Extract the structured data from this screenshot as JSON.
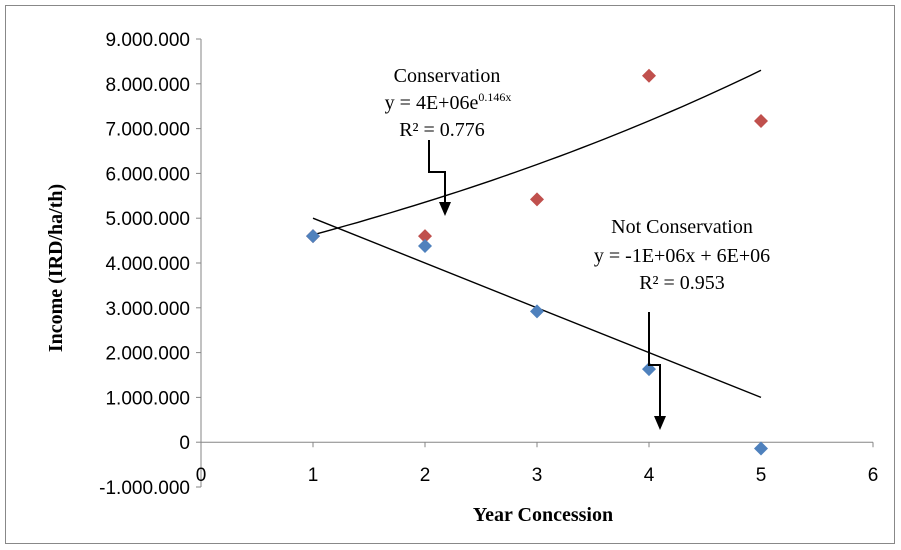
{
  "chart_data": {
    "type": "scatter",
    "title": "",
    "xlabel": "Year  Concession",
    "ylabel": "Income  (IRD/ha/th)",
    "xlim": [
      0,
      6
    ],
    "ylim": [
      -1000000,
      9000000
    ],
    "x_ticks": [
      "0",
      "1",
      "2",
      "3",
      "4",
      "5",
      "6"
    ],
    "y_ticks": [
      "-1.000.000",
      "0",
      "1.000.000",
      "2.000.000",
      "3.000.000",
      "4.000.000",
      "5.000.000",
      "6.000.000",
      "7.000.000",
      "8.000.000",
      "9.000.000"
    ],
    "grid": false,
    "series": [
      {
        "name": "Conservation",
        "color": "#c0504d",
        "marker": "diamond",
        "x": [
          1,
          2,
          3,
          4,
          5
        ],
        "y": [
          4600000,
          4600000,
          5420000,
          8180000,
          7170000
        ],
        "trendline": {
          "type": "exponential",
          "a": 4000000,
          "b": 0.146
        }
      },
      {
        "name": "Not Conservation",
        "color": "#4f81bd",
        "marker": "diamond",
        "x": [
          1,
          2,
          3,
          4,
          5
        ],
        "y": [
          4600000,
          4380000,
          2920000,
          1630000,
          -140000
        ],
        "trendline": {
          "type": "linear",
          "slope": -1000000,
          "intercept": 6000000
        }
      }
    ],
    "annotations": {
      "conservation": {
        "name": "Conservation",
        "eq_main": "y = 4E+06e",
        "eq_sup": "0.146x",
        "r2": "R² = 0.776"
      },
      "not_conservation": {
        "name": "Not Conservation",
        "eq": "y = -1E+06x + 6E+06",
        "r2": "R² = 0.953"
      }
    }
  }
}
